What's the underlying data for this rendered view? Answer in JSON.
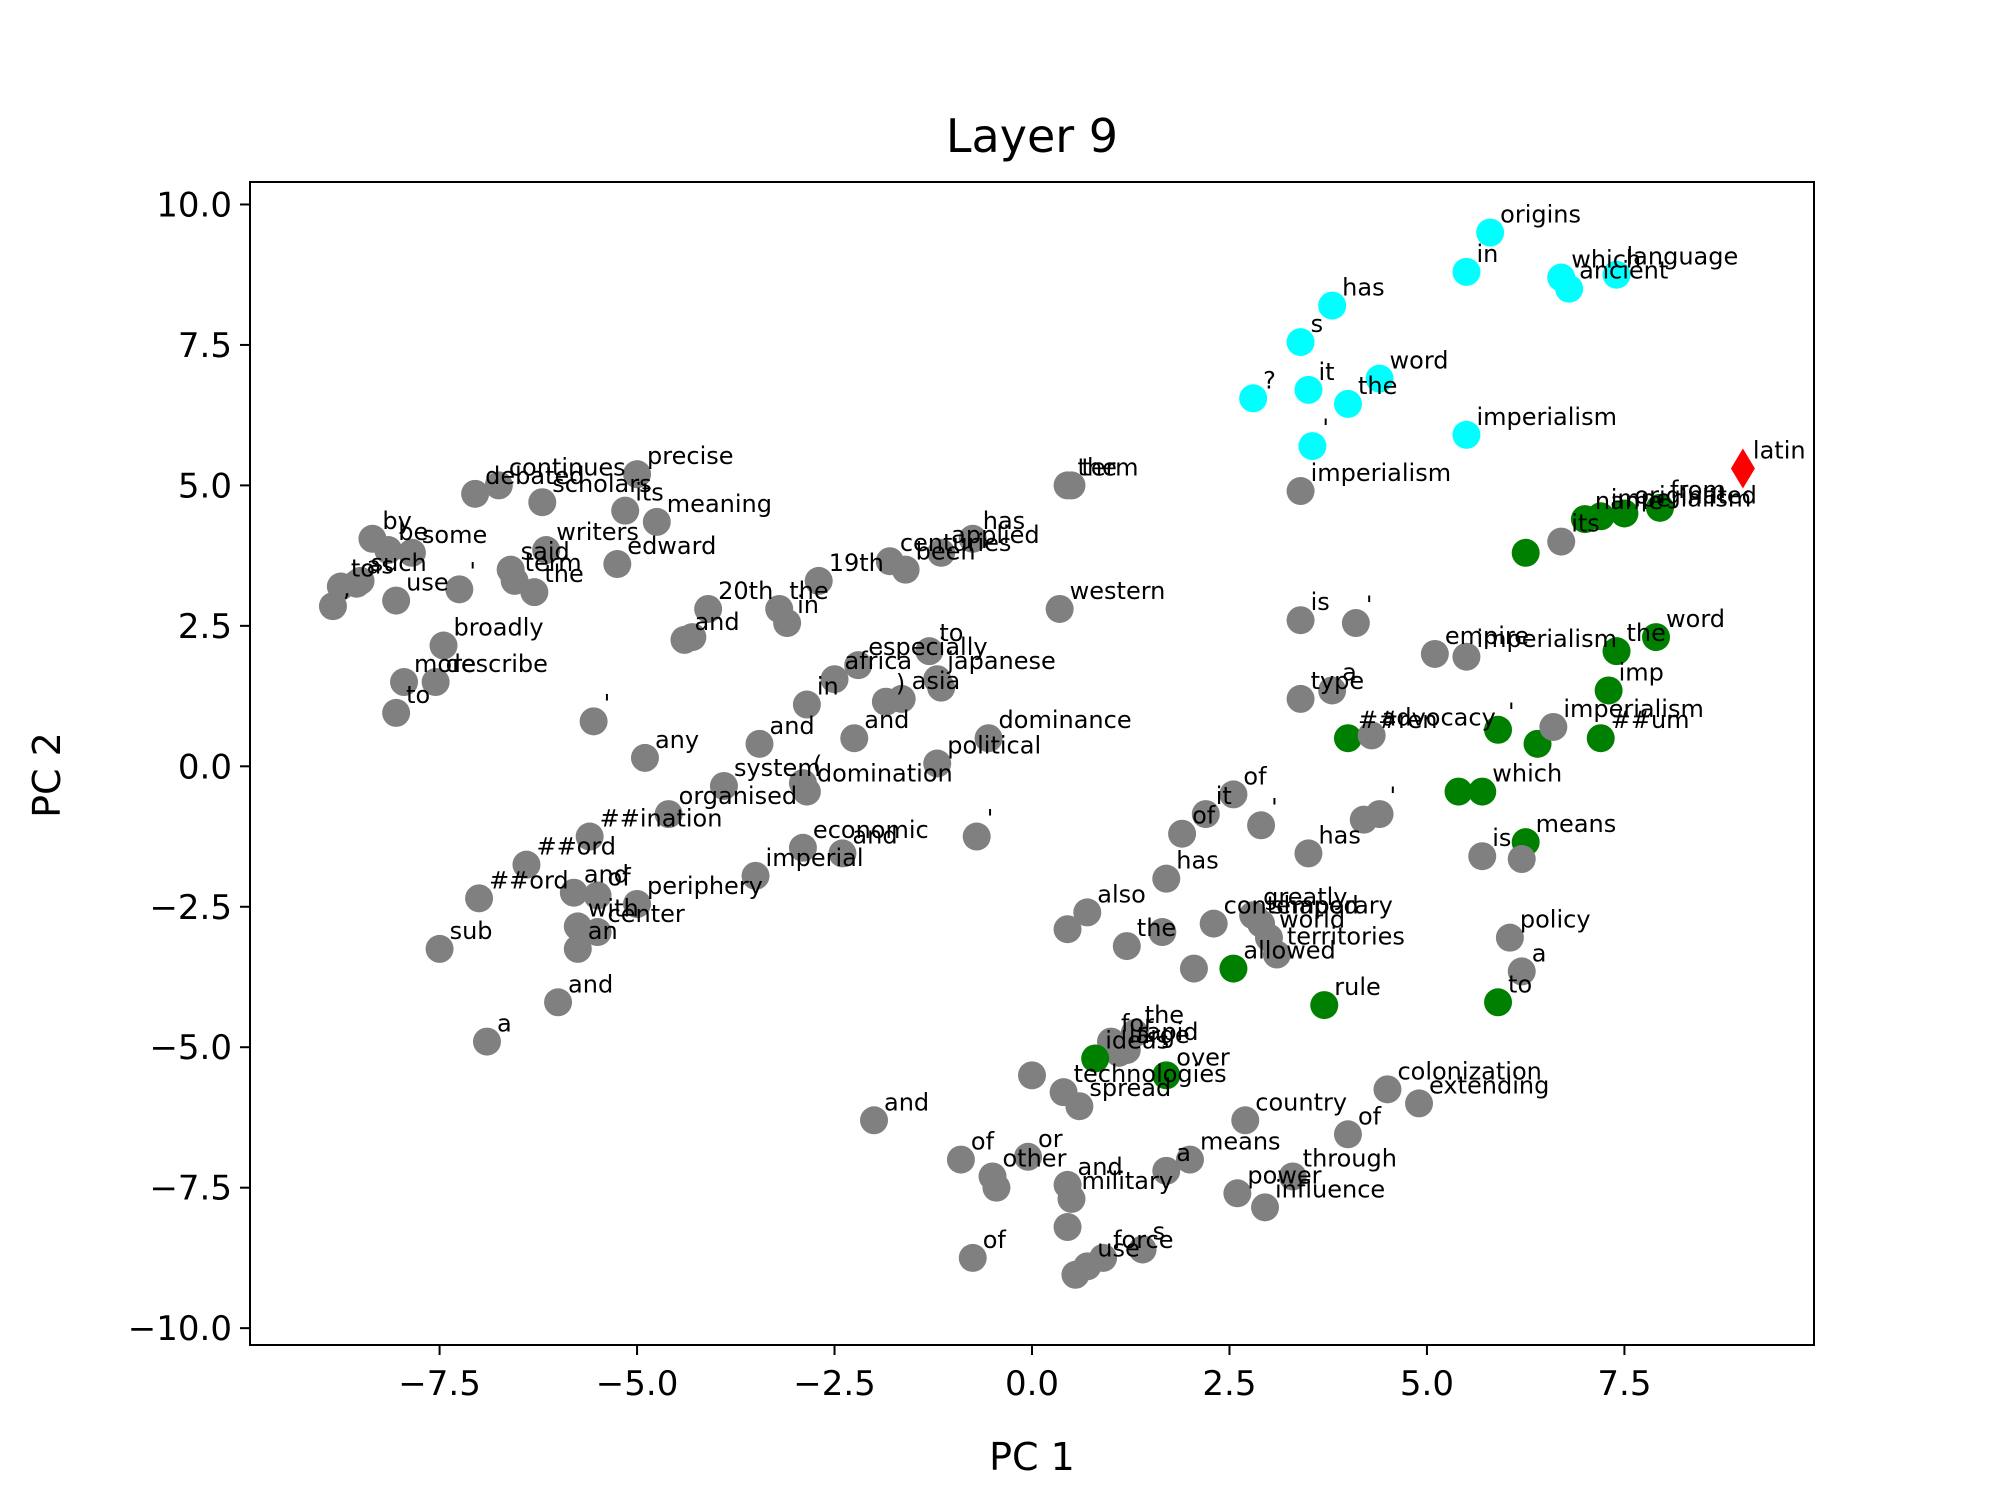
{
  "chart_data": {
    "type": "scatter",
    "title": "Layer 9",
    "xlabel": "PC 1",
    "ylabel": "PC 2",
    "xlim": [
      -9.9,
      9.9
    ],
    "ylim": [
      -10.3,
      10.4
    ],
    "xticks": [
      -7.5,
      -5.0,
      -2.5,
      0.0,
      2.5,
      5.0,
      7.5
    ],
    "xtick_labels": [
      "−7.5",
      "−5.0",
      "−2.5",
      "0.0",
      "2.5",
      "5.0",
      "7.5"
    ],
    "yticks": [
      10.0,
      7.5,
      5.0,
      2.5,
      0.0,
      -2.5,
      -5.0,
      -7.5,
      -10.0
    ],
    "ytick_labels": [
      "10.0",
      "7.5",
      "5.0",
      "2.5",
      "0.0",
      "−2.5",
      "−5.0",
      "−7.5",
      "−10.0"
    ],
    "grid": false,
    "colors": {
      "gray": "#808080",
      "green": "#008000",
      "cyan": "#00ffff",
      "red": "#ff0000"
    },
    "points": [
      {
        "x": 5.8,
        "y": 9.5,
        "label": "origins",
        "color": "cyan"
      },
      {
        "x": 5.5,
        "y": 8.8,
        "label": "in",
        "color": "cyan"
      },
      {
        "x": 6.7,
        "y": 8.7,
        "label": "which",
        "color": "cyan"
      },
      {
        "x": 6.8,
        "y": 8.5,
        "label": "ancient",
        "color": "cyan"
      },
      {
        "x": 7.4,
        "y": 8.75,
        "label": "language",
        "color": "cyan"
      },
      {
        "x": 3.8,
        "y": 8.2,
        "label": "has",
        "color": "cyan"
      },
      {
        "x": 3.4,
        "y": 7.55,
        "label": "s",
        "color": "cyan"
      },
      {
        "x": 4.4,
        "y": 6.9,
        "label": "word",
        "color": "cyan"
      },
      {
        "x": 2.8,
        "y": 6.55,
        "label": "?",
        "color": "cyan"
      },
      {
        "x": 3.5,
        "y": 6.7,
        "label": "it",
        "color": "cyan"
      },
      {
        "x": 4.0,
        "y": 6.45,
        "label": "the",
        "color": "cyan"
      },
      {
        "x": 5.5,
        "y": 5.9,
        "label": "imperialism",
        "color": "cyan"
      },
      {
        "x": 3.55,
        "y": 5.7,
        "label": "'",
        "color": "cyan"
      },
      {
        "x": 9.0,
        "y": 5.3,
        "label": "latin",
        "color": "red",
        "marker": "diamond"
      },
      {
        "x": 3.4,
        "y": 4.9,
        "label": "imperialism",
        "color": "gray"
      },
      {
        "x": 7.0,
        "y": 4.4,
        "label": "name",
        "color": "green"
      },
      {
        "x": 7.5,
        "y": 4.5,
        "label": "originated",
        "color": "green"
      },
      {
        "x": 7.95,
        "y": 4.6,
        "label": "from",
        "color": "green"
      },
      {
        "x": 6.7,
        "y": 4.0,
        "label": "its",
        "color": "gray"
      },
      {
        "x": 7.2,
        "y": 4.45,
        "label": "imperialism",
        "color": "green"
      },
      {
        "x": 6.25,
        "y": 3.8,
        "label": "",
        "color": "green"
      },
      {
        "x": 7.9,
        "y": 2.3,
        "label": "word",
        "color": "green"
      },
      {
        "x": 7.4,
        "y": 2.05,
        "label": "the",
        "color": "green"
      },
      {
        "x": 7.3,
        "y": 1.35,
        "label": "imp",
        "color": "green"
      },
      {
        "x": 5.1,
        "y": 2.0,
        "label": "empire",
        "color": "gray"
      },
      {
        "x": 5.5,
        "y": 1.95,
        "label": "imperialism",
        "color": "gray"
      },
      {
        "x": 3.4,
        "y": 2.6,
        "label": "is",
        "color": "gray"
      },
      {
        "x": 4.1,
        "y": 2.55,
        "label": "'",
        "color": "gray"
      },
      {
        "x": 3.4,
        "y": 1.2,
        "label": "type",
        "color": "gray"
      },
      {
        "x": 3.8,
        "y": 1.35,
        "label": "a",
        "color": "gray"
      },
      {
        "x": 4.0,
        "y": 0.5,
        "label": "##ren",
        "color": "green"
      },
      {
        "x": 4.3,
        "y": 0.55,
        "label": "advocacy",
        "color": "gray"
      },
      {
        "x": 5.9,
        "y": 0.65,
        "label": "'",
        "color": "green"
      },
      {
        "x": 6.4,
        "y": 0.4,
        "label": "",
        "color": "green"
      },
      {
        "x": 6.6,
        "y": 0.7,
        "label": "imperialism",
        "color": "gray"
      },
      {
        "x": 7.2,
        "y": 0.5,
        "label": "##um",
        "color": "green"
      },
      {
        "x": 5.4,
        "y": -0.45,
        "label": "",
        "color": "green"
      },
      {
        "x": 5.7,
        "y": -0.45,
        "label": "which",
        "color": "green"
      },
      {
        "x": 6.25,
        "y": -1.35,
        "label": "means",
        "color": "green"
      },
      {
        "x": 5.7,
        "y": -1.6,
        "label": "is",
        "color": "gray"
      },
      {
        "x": 6.2,
        "y": -1.65,
        "label": "",
        "color": "gray"
      },
      {
        "x": 4.2,
        "y": -0.95,
        "label": "",
        "color": "gray"
      },
      {
        "x": 4.4,
        "y": -0.85,
        "label": "'",
        "color": "gray"
      },
      {
        "x": 2.55,
        "y": -0.5,
        "label": "of",
        "color": "gray"
      },
      {
        "x": 2.2,
        "y": -0.85,
        "label": "it",
        "color": "gray"
      },
      {
        "x": 1.9,
        "y": -1.2,
        "label": "of",
        "color": "gray"
      },
      {
        "x": 2.9,
        "y": -1.05,
        "label": "'",
        "color": "gray"
      },
      {
        "x": 3.5,
        "y": -1.55,
        "label": "has",
        "color": "gray"
      },
      {
        "x": 1.7,
        "y": -2.0,
        "label": "has",
        "color": "gray"
      },
      {
        "x": 2.8,
        "y": -2.65,
        "label": "greatly",
        "color": "gray"
      },
      {
        "x": 2.9,
        "y": -2.8,
        "label": "shaped",
        "color": "gray"
      },
      {
        "x": 2.3,
        "y": -2.8,
        "label": "contemporary",
        "color": "gray"
      },
      {
        "x": 3.0,
        "y": -3.05,
        "label": "world",
        "color": "gray"
      },
      {
        "x": 0.7,
        "y": -2.6,
        "label": "also",
        "color": "gray"
      },
      {
        "x": 0.45,
        "y": -2.9,
        "label": "",
        "color": "gray"
      },
      {
        "x": 1.2,
        "y": -3.2,
        "label": "the",
        "color": "gray"
      },
      {
        "x": 1.65,
        "y": -2.95,
        "label": "",
        "color": "gray"
      },
      {
        "x": 2.55,
        "y": -3.6,
        "label": "allowed",
        "color": "green"
      },
      {
        "x": 2.05,
        "y": -3.6,
        "label": "",
        "color": "gray"
      },
      {
        "x": 3.1,
        "y": -3.35,
        "label": "territories",
        "color": "gray"
      },
      {
        "x": 6.05,
        "y": -3.05,
        "label": "policy",
        "color": "gray"
      },
      {
        "x": 6.2,
        "y": -3.65,
        "label": "a",
        "color": "gray"
      },
      {
        "x": 5.9,
        "y": -4.2,
        "label": "to",
        "color": "green"
      },
      {
        "x": 3.7,
        "y": -4.25,
        "label": "rule",
        "color": "green"
      },
      {
        "x": 1.3,
        "y": -4.75,
        "label": "the",
        "color": "gray"
      },
      {
        "x": 1.0,
        "y": -4.9,
        "label": "for",
        "color": "gray"
      },
      {
        "x": 1.2,
        "y": -5.05,
        "label": "rapid",
        "color": "gray"
      },
      {
        "x": 1.1,
        "y": -5.1,
        "label": "large",
        "color": "gray"
      },
      {
        "x": 0.8,
        "y": -5.2,
        "label": "ideas",
        "color": "green"
      },
      {
        "x": 1.7,
        "y": -5.5,
        "label": "over",
        "color": "green"
      },
      {
        "x": 0.0,
        "y": -5.5,
        "label": "",
        "color": "gray"
      },
      {
        "x": 0.4,
        "y": -5.8,
        "label": "technologies",
        "color": "gray"
      },
      {
        "x": 0.6,
        "y": -6.05,
        "label": "spread",
        "color": "gray"
      },
      {
        "x": 4.5,
        "y": -5.75,
        "label": "colonization",
        "color": "gray"
      },
      {
        "x": 4.9,
        "y": -6.0,
        "label": "extending",
        "color": "gray"
      },
      {
        "x": 2.7,
        "y": -6.3,
        "label": "country",
        "color": "gray"
      },
      {
        "x": 4.0,
        "y": -6.55,
        "label": "of",
        "color": "gray"
      },
      {
        "x": -2.0,
        "y": -6.3,
        "label": "and",
        "color": "gray"
      },
      {
        "x": -0.9,
        "y": -7.0,
        "label": "of",
        "color": "gray"
      },
      {
        "x": -0.05,
        "y": -6.95,
        "label": "or",
        "color": "gray"
      },
      {
        "x": -0.5,
        "y": -7.3,
        "label": "other",
        "color": "gray"
      },
      {
        "x": -0.45,
        "y": -7.5,
        "label": "",
        "color": "gray"
      },
      {
        "x": 0.45,
        "y": -7.45,
        "label": "and",
        "color": "gray"
      },
      {
        "x": 2.0,
        "y": -7.0,
        "label": "means",
        "color": "gray"
      },
      {
        "x": 1.7,
        "y": -7.2,
        "label": "a",
        "color": "gray"
      },
      {
        "x": 3.3,
        "y": -7.3,
        "label": "through",
        "color": "gray"
      },
      {
        "x": 2.6,
        "y": -7.6,
        "label": "power",
        "color": "gray"
      },
      {
        "x": 2.95,
        "y": -7.85,
        "label": "influence",
        "color": "gray"
      },
      {
        "x": 0.5,
        "y": -7.7,
        "label": "military",
        "color": "gray"
      },
      {
        "x": 0.45,
        "y": -8.2,
        "label": "",
        "color": "gray"
      },
      {
        "x": 1.4,
        "y": -8.6,
        "label": "s",
        "color": "gray"
      },
      {
        "x": 0.9,
        "y": -8.75,
        "label": "force",
        "color": "gray"
      },
      {
        "x": 0.7,
        "y": -8.9,
        "label": "use",
        "color": "gray"
      },
      {
        "x": 0.55,
        "y": -9.05,
        "label": "",
        "color": "gray"
      },
      {
        "x": -0.75,
        "y": -8.75,
        "label": "of",
        "color": "gray"
      },
      {
        "x": 0.45,
        "y": 5.0,
        "label": "the",
        "color": "gray"
      },
      {
        "x": 0.5,
        "y": 5.0,
        "label": "term",
        "color": "gray"
      },
      {
        "x": -0.75,
        "y": 4.05,
        "label": "has",
        "color": "gray"
      },
      {
        "x": -1.15,
        "y": 3.8,
        "label": "applied",
        "color": "gray"
      },
      {
        "x": -1.8,
        "y": 3.65,
        "label": "centuries",
        "color": "gray"
      },
      {
        "x": -1.6,
        "y": 3.5,
        "label": "been",
        "color": "gray"
      },
      {
        "x": -2.7,
        "y": 3.3,
        "label": "19th",
        "color": "gray"
      },
      {
        "x": -3.2,
        "y": 2.8,
        "label": "the",
        "color": "gray"
      },
      {
        "x": -3.1,
        "y": 2.55,
        "label": "in",
        "color": "gray"
      },
      {
        "x": -4.1,
        "y": 2.8,
        "label": "20th",
        "color": "gray"
      },
      {
        "x": -4.4,
        "y": 2.25,
        "label": "and",
        "color": "gray"
      },
      {
        "x": -4.3,
        "y": 2.3,
        "label": "",
        "color": "gray"
      },
      {
        "x": 0.35,
        "y": 2.8,
        "label": "western",
        "color": "gray"
      },
      {
        "x": -1.3,
        "y": 2.05,
        "label": "to",
        "color": "gray"
      },
      {
        "x": -2.5,
        "y": 1.55,
        "label": "africa",
        "color": "gray"
      },
      {
        "x": -2.2,
        "y": 1.8,
        "label": "especially",
        "color": "gray"
      },
      {
        "x": -1.2,
        "y": 1.55,
        "label": "japanese",
        "color": "gray"
      },
      {
        "x": -2.85,
        "y": 1.1,
        "label": "in",
        "color": "gray"
      },
      {
        "x": -1.85,
        "y": 1.15,
        "label": ")",
        "color": "gray"
      },
      {
        "x": -1.65,
        "y": 1.2,
        "label": "asia",
        "color": "gray"
      },
      {
        "x": -1.15,
        "y": 1.4,
        "label": "",
        "color": "gray"
      },
      {
        "x": -2.25,
        "y": 0.5,
        "label": "and",
        "color": "gray"
      },
      {
        "x": -3.45,
        "y": 0.4,
        "label": "and",
        "color": "gray"
      },
      {
        "x": -0.55,
        "y": 0.5,
        "label": "dominance",
        "color": "gray"
      },
      {
        "x": -1.2,
        "y": 0.05,
        "label": "political",
        "color": "gray"
      },
      {
        "x": -4.9,
        "y": 0.15,
        "label": "any",
        "color": "gray"
      },
      {
        "x": -3.9,
        "y": -0.35,
        "label": "system",
        "color": "gray"
      },
      {
        "x": -2.9,
        "y": -0.3,
        "label": "(",
        "color": "gray"
      },
      {
        "x": -2.85,
        "y": -0.45,
        "label": "domination",
        "color": "gray"
      },
      {
        "x": -4.6,
        "y": -0.85,
        "label": "organised",
        "color": "gray"
      },
      {
        "x": -0.7,
        "y": -1.25,
        "label": "'",
        "color": "gray"
      },
      {
        "x": -5.55,
        "y": 0.8,
        "label": "'",
        "color": "gray"
      },
      {
        "x": -5.6,
        "y": -1.25,
        "label": "##ination",
        "color": "gray"
      },
      {
        "x": -2.4,
        "y": -1.55,
        "label": "and",
        "color": "gray"
      },
      {
        "x": -2.9,
        "y": -1.45,
        "label": "economic",
        "color": "gray"
      },
      {
        "x": -3.5,
        "y": -1.95,
        "label": "imperial",
        "color": "gray"
      },
      {
        "x": -6.4,
        "y": -1.75,
        "label": "##ord",
        "color": "gray"
      },
      {
        "x": -5.8,
        "y": -2.25,
        "label": "and",
        "color": "gray"
      },
      {
        "x": -5.5,
        "y": -2.3,
        "label": "of",
        "color": "gray"
      },
      {
        "x": -5.0,
        "y": -2.45,
        "label": "periphery",
        "color": "gray"
      },
      {
        "x": -7.0,
        "y": -2.35,
        "label": "##ord",
        "color": "gray"
      },
      {
        "x": -5.75,
        "y": -2.85,
        "label": "with",
        "color": "gray"
      },
      {
        "x": -5.5,
        "y": -2.95,
        "label": "center",
        "color": "gray"
      },
      {
        "x": -5.75,
        "y": -3.25,
        "label": "an",
        "color": "gray"
      },
      {
        "x": -7.5,
        "y": -3.25,
        "label": "sub",
        "color": "gray"
      },
      {
        "x": -6.0,
        "y": -4.2,
        "label": "and",
        "color": "gray"
      },
      {
        "x": -6.9,
        "y": -4.9,
        "label": "a",
        "color": "gray"
      },
      {
        "x": -5.0,
        "y": 5.2,
        "label": "precise",
        "color": "gray"
      },
      {
        "x": -7.05,
        "y": 4.85,
        "label": "debated",
        "color": "gray"
      },
      {
        "x": -6.75,
        "y": 5.0,
        "label": "continues",
        "color": "gray"
      },
      {
        "x": -6.2,
        "y": 4.7,
        "label": "scholars",
        "color": "gray"
      },
      {
        "x": -5.15,
        "y": 4.55,
        "label": "its",
        "color": "gray"
      },
      {
        "x": -4.75,
        "y": 4.35,
        "label": "meaning",
        "color": "gray"
      },
      {
        "x": -8.35,
        "y": 4.05,
        "label": "by",
        "color": "gray"
      },
      {
        "x": -8.15,
        "y": 3.85,
        "label": "be",
        "color": "gray"
      },
      {
        "x": -7.85,
        "y": 3.8,
        "label": "some",
        "color": "gray"
      },
      {
        "x": -6.15,
        "y": 3.85,
        "label": "writers",
        "color": "gray"
      },
      {
        "x": -5.25,
        "y": 3.6,
        "label": "edward",
        "color": "gray"
      },
      {
        "x": -6.6,
        "y": 3.5,
        "label": "said",
        "color": "gray"
      },
      {
        "x": -6.55,
        "y": 3.3,
        "label": "term",
        "color": "gray"
      },
      {
        "x": -6.3,
        "y": 3.1,
        "label": "the",
        "color": "gray"
      },
      {
        "x": -8.75,
        "y": 3.2,
        "label": "to",
        "color": "gray"
      },
      {
        "x": -8.55,
        "y": 3.25,
        "label": "as",
        "color": "gray"
      },
      {
        "x": -8.5,
        "y": 3.3,
        "label": "such",
        "color": "gray"
      },
      {
        "x": -8.85,
        "y": 2.85,
        "label": ",",
        "color": "gray"
      },
      {
        "x": -7.25,
        "y": 3.15,
        "label": "'",
        "color": "gray"
      },
      {
        "x": -8.05,
        "y": 2.95,
        "label": "use",
        "color": "gray"
      },
      {
        "x": -7.45,
        "y": 2.15,
        "label": "broadly",
        "color": "gray"
      },
      {
        "x": -7.95,
        "y": 1.5,
        "label": "more",
        "color": "gray"
      },
      {
        "x": -7.55,
        "y": 1.5,
        "label": "describe",
        "color": "gray"
      },
      {
        "x": -8.05,
        "y": 0.95,
        "label": "to",
        "color": "gray"
      }
    ]
  }
}
